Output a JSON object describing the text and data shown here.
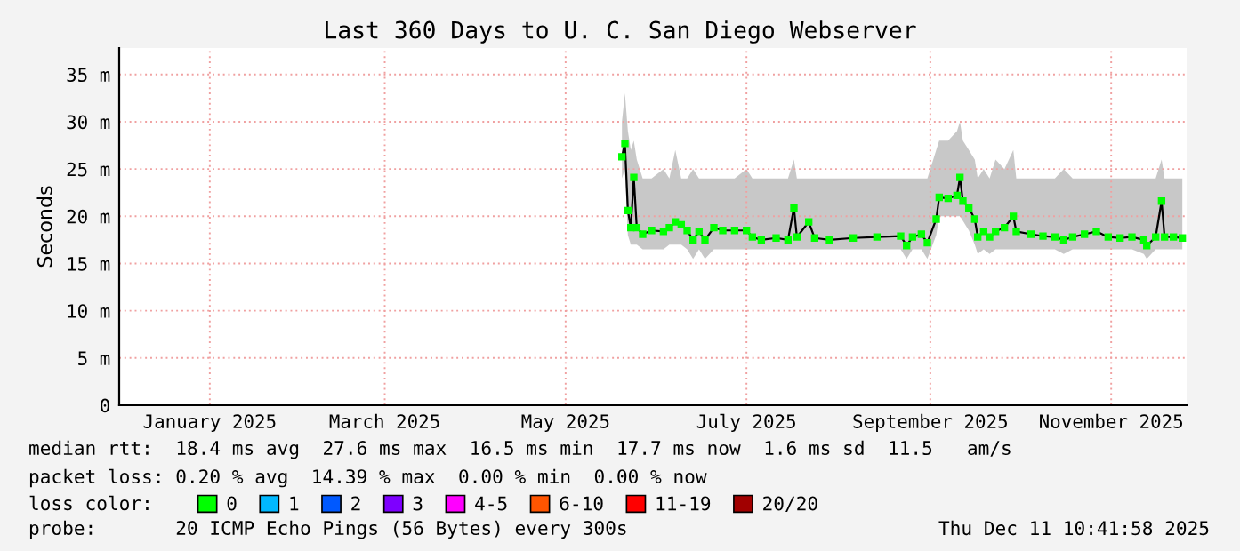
{
  "chart_data": {
    "type": "line",
    "title": "Last 360 Days to U. C. San Diego Webserver",
    "ylabel": "Seconds",
    "xlim": [
      "2024-12-16T10:41",
      "2025-12-11T10:41"
    ],
    "xticks": [
      {
        "value": "2025-01-16",
        "label": "January 2025"
      },
      {
        "value": "2025-03-16",
        "label": "March 2025"
      },
      {
        "value": "2025-05-16",
        "label": "May 2025"
      },
      {
        "value": "2025-07-16",
        "label": "July 2025"
      },
      {
        "value": "2025-09-16",
        "label": "September 2025"
      },
      {
        "value": "2025-11-16",
        "label": "November 2025"
      }
    ],
    "ylim": [
      0,
      37.8
    ],
    "yticks": [
      {
        "value": 0,
        "label": "0"
      },
      {
        "value": 5,
        "label": "5 m"
      },
      {
        "value": 10,
        "label": "10 m"
      },
      {
        "value": 15,
        "label": "15 m"
      },
      {
        "value": 20,
        "label": "20 m"
      },
      {
        "value": 25,
        "label": "25 m"
      },
      {
        "value": 30,
        "label": "30 m"
      },
      {
        "value": 35,
        "label": "35 m"
      }
    ],
    "grid": true,
    "legend": "bottom",
    "legend_title": "loss color:",
    "x": [
      "2025-06-04",
      "2025-06-05",
      "2025-06-06",
      "2025-06-07",
      "2025-06-08",
      "2025-06-09",
      "2025-06-11",
      "2025-06-14",
      "2025-06-18",
      "2025-06-20",
      "2025-06-22",
      "2025-06-24",
      "2025-06-26",
      "2025-06-28",
      "2025-06-30",
      "2025-07-02",
      "2025-07-05",
      "2025-07-08",
      "2025-07-12",
      "2025-07-16",
      "2025-07-18",
      "2025-07-21",
      "2025-07-26",
      "2025-07-30",
      "2025-08-01",
      "2025-08-02",
      "2025-08-06",
      "2025-08-08",
      "2025-08-13",
      "2025-08-21",
      "2025-08-29",
      "2025-09-06",
      "2025-09-08",
      "2025-09-10",
      "2025-09-13",
      "2025-09-15",
      "2025-09-18",
      "2025-09-19",
      "2025-09-22",
      "2025-09-25",
      "2025-09-26",
      "2025-09-27",
      "2025-09-29",
      "2025-10-01",
      "2025-10-02",
      "2025-10-04",
      "2025-10-06",
      "2025-10-08",
      "2025-10-11",
      "2025-10-14",
      "2025-10-15",
      "2025-10-20",
      "2025-10-24",
      "2025-10-28",
      "2025-10-31",
      "2025-11-03",
      "2025-11-07",
      "2025-11-11",
      "2025-11-15",
      "2025-11-19",
      "2025-11-23",
      "2025-11-27",
      "2025-11-28",
      "2025-12-01",
      "2025-12-03",
      "2025-12-04",
      "2025-12-07",
      "2025-12-10"
    ],
    "series": [
      {
        "name": "0",
        "color": "#00ff00",
        "marker": "square",
        "values": [
          26.3,
          27.7,
          20.6,
          18.8,
          24.1,
          18.8,
          18.1,
          18.5,
          18.4,
          18.8,
          19.4,
          19.1,
          18.5,
          17.5,
          18.4,
          17.5,
          18.8,
          18.5,
          18.5,
          18.5,
          17.8,
          17.5,
          17.7,
          17.5,
          20.9,
          17.8,
          19.4,
          17.7,
          17.5,
          17.7,
          17.8,
          17.9,
          16.9,
          17.8,
          18.1,
          17.2,
          19.7,
          22.0,
          21.9,
          22.2,
          24.1,
          21.6,
          20.9,
          19.7,
          17.8,
          18.4,
          17.8,
          18.4,
          18.8,
          20.0,
          18.4,
          18.1,
          17.9,
          17.8,
          17.5,
          17.8,
          18.1,
          18.4,
          17.8,
          17.7,
          17.8,
          17.5,
          16.9,
          17.8,
          21.6,
          17.8,
          17.8,
          17.7
        ],
        "upper": [
          30,
          33,
          29,
          27,
          28,
          26,
          24,
          24,
          25,
          24,
          27,
          24,
          24,
          25,
          24,
          24,
          24,
          24,
          24,
          25,
          24,
          24,
          24,
          24,
          26,
          24,
          24,
          24,
          24,
          24,
          24,
          24,
          24,
          24,
          24,
          24,
          27,
          28,
          28,
          29,
          30,
          28,
          27,
          26,
          24,
          25,
          24,
          26,
          25,
          27,
          24,
          24,
          24,
          24,
          25,
          24,
          24,
          24,
          24,
          24,
          24,
          24,
          24,
          24,
          26,
          24,
          24,
          24
        ],
        "lower": [
          24,
          25,
          18,
          17,
          17,
          17,
          16.5,
          16.5,
          16.5,
          17,
          17,
          17,
          16.5,
          15.5,
          16.5,
          15.5,
          16.5,
          16.5,
          16.5,
          16.5,
          16.5,
          16.5,
          16.5,
          16.5,
          16.5,
          16.5,
          16.5,
          16.5,
          16.5,
          16.5,
          16.5,
          16.5,
          15.5,
          16.5,
          16.5,
          15.5,
          18,
          20,
          20,
          20,
          20,
          19.5,
          18.5,
          17,
          16,
          16.5,
          16,
          16.5,
          16.5,
          16.5,
          16.5,
          16.5,
          16.5,
          16.5,
          16,
          16.5,
          16.5,
          16.5,
          16.5,
          16.5,
          16.5,
          16,
          15.5,
          16.5,
          16.5,
          16.5,
          16.5,
          16.5
        ]
      },
      {
        "name": "1",
        "color": "#00b8ff",
        "values": [
          null,
          null,
          null,
          null,
          null,
          null,
          null,
          null,
          null,
          null,
          null,
          null,
          null,
          null,
          null,
          null,
          null,
          null,
          null,
          null,
          null,
          null,
          null,
          null,
          null,
          null,
          null,
          null,
          null,
          null,
          null,
          null,
          null,
          null,
          null,
          null,
          null,
          null,
          null,
          null,
          null,
          null,
          null,
          null,
          null,
          null,
          null,
          null,
          null,
          null,
          null,
          null,
          null,
          null,
          null,
          null,
          null,
          null,
          null,
          null,
          null,
          null,
          null,
          null,
          null,
          null,
          null,
          null
        ]
      },
      {
        "name": "2",
        "color": "#0059ff",
        "values": [
          null,
          null,
          null,
          null,
          null,
          null,
          null,
          null,
          null,
          null,
          null,
          null,
          null,
          null,
          null,
          null,
          null,
          null,
          null,
          null,
          null,
          null,
          null,
          null,
          null,
          null,
          null,
          null,
          null,
          null,
          null,
          null,
          null,
          null,
          null,
          null,
          null,
          null,
          null,
          null,
          null,
          null,
          null,
          null,
          null,
          null,
          null,
          null,
          null,
          null,
          null,
          null,
          null,
          null,
          null,
          null,
          null,
          null,
          null,
          null,
          null,
          null,
          null,
          null,
          null,
          null,
          null,
          null
        ]
      },
      {
        "name": "3",
        "color": "#7e00ff",
        "values": [
          null,
          null,
          null,
          null,
          null,
          null,
          null,
          null,
          null,
          null,
          null,
          null,
          null,
          null,
          null,
          null,
          null,
          null,
          null,
          null,
          null,
          null,
          null,
          null,
          null,
          null,
          null,
          null,
          null,
          null,
          null,
          null,
          null,
          null,
          null,
          null,
          null,
          null,
          null,
          null,
          null,
          null,
          null,
          null,
          null,
          null,
          null,
          null,
          null,
          null,
          null,
          null,
          null,
          null,
          null,
          null,
          null,
          null,
          null,
          null,
          null,
          null,
          null,
          null,
          null,
          null,
          null,
          null
        ]
      },
      {
        "name": "4-5",
        "color": "#ff00ff",
        "values": [
          null,
          null,
          null,
          null,
          null,
          null,
          null,
          null,
          null,
          null,
          null,
          null,
          null,
          null,
          null,
          null,
          null,
          null,
          null,
          null,
          null,
          null,
          null,
          null,
          null,
          null,
          null,
          null,
          null,
          null,
          null,
          null,
          null,
          null,
          null,
          null,
          null,
          null,
          null,
          null,
          null,
          null,
          null,
          null,
          null,
          null,
          null,
          null,
          null,
          null,
          null,
          null,
          null,
          null,
          null,
          null,
          null,
          null,
          null,
          null,
          null,
          null,
          null,
          null,
          null,
          null,
          null,
          null
        ]
      },
      {
        "name": "6-10",
        "color": "#ff5500",
        "values": [
          null,
          null,
          null,
          null,
          null,
          null,
          null,
          null,
          null,
          null,
          null,
          null,
          null,
          null,
          null,
          null,
          null,
          null,
          null,
          null,
          null,
          null,
          null,
          null,
          null,
          null,
          null,
          null,
          null,
          null,
          null,
          null,
          null,
          null,
          null,
          null,
          null,
          null,
          null,
          null,
          null,
          null,
          null,
          null,
          null,
          null,
          null,
          null,
          null,
          null,
          null,
          null,
          null,
          null,
          null,
          null,
          null,
          null,
          null,
          null,
          null,
          null,
          null,
          null,
          null,
          null,
          null,
          null
        ]
      },
      {
        "name": "11-19",
        "color": "#ff0000",
        "values": [
          null,
          null,
          null,
          null,
          null,
          null,
          null,
          null,
          null,
          null,
          null,
          null,
          null,
          null,
          null,
          null,
          null,
          null,
          null,
          null,
          null,
          null,
          null,
          null,
          null,
          null,
          null,
          null,
          null,
          null,
          null,
          null,
          null,
          null,
          null,
          null,
          null,
          null,
          null,
          null,
          null,
          null,
          null,
          null,
          null,
          null,
          null,
          null,
          null,
          null,
          null,
          null,
          null,
          null,
          null,
          null,
          null,
          null,
          null,
          null,
          null,
          null,
          null,
          null,
          null,
          null,
          null,
          null
        ]
      },
      {
        "name": "20/20",
        "color": "#a10000",
        "values": [
          null,
          null,
          null,
          null,
          null,
          null,
          null,
          null,
          null,
          null,
          null,
          null,
          null,
          null,
          null,
          null,
          null,
          null,
          null,
          null,
          null,
          null,
          null,
          null,
          null,
          null,
          null,
          null,
          null,
          null,
          null,
          null,
          null,
          null,
          null,
          null,
          null,
          null,
          null,
          null,
          null,
          null,
          null,
          null,
          null,
          null,
          null,
          null,
          null,
          null,
          null,
          null,
          null,
          null,
          null,
          null,
          null,
          null,
          null,
          null,
          null,
          null,
          null,
          null,
          null,
          null,
          null,
          null
        ]
      }
    ],
    "annotations": [
      "median rtt:  18.4 ms avg  27.6 ms max  16.5 ms min  17.7 ms now  1.6 ms sd  11.5   am/s",
      "packet loss: 0.20 % avg  14.39 % max  0.00 % min  0.00 % now",
      "probe:       20 ICMP Echo Pings (56 Bytes) every 300s",
      "Thu Dec 11 10:41:58 2025"
    ]
  }
}
